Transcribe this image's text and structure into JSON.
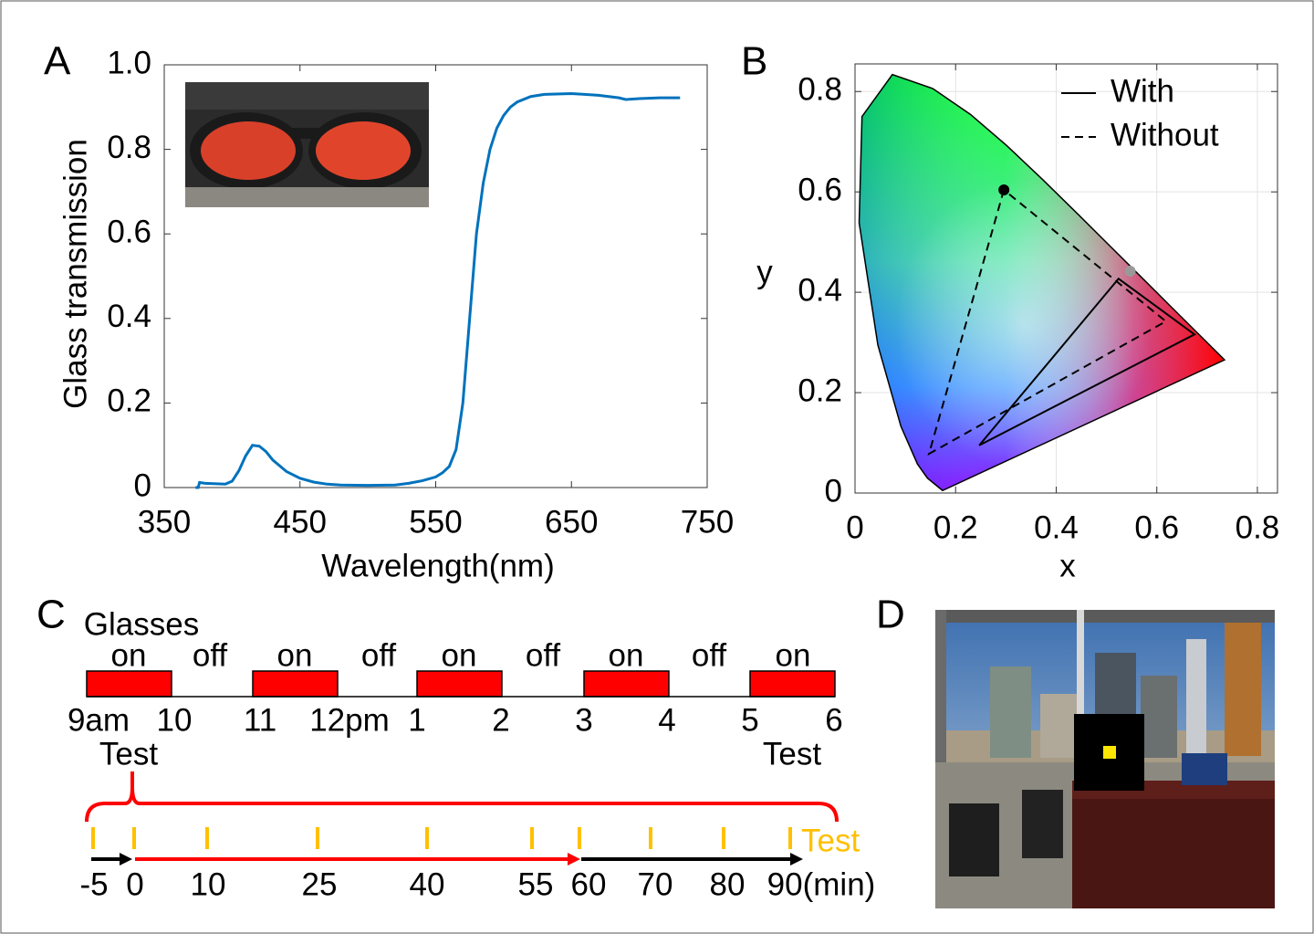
{
  "panels": {
    "a": "A",
    "b": "B",
    "c": "C",
    "d": "D"
  },
  "chart_data": [
    {
      "type": "line",
      "xlabel": "Wavelength(nm)",
      "ylabel": "Glass transmission",
      "xlim": [
        350,
        750
      ],
      "ylim": [
        0,
        1
      ],
      "xticks": [
        350,
        450,
        550,
        650,
        750
      ],
      "yticks": [
        0,
        0.2,
        0.4,
        0.6,
        0.8,
        {
          "value": 1,
          "label": "1.0"
        }
      ],
      "x": [
        373,
        375,
        376,
        380,
        395,
        400,
        405,
        410,
        415,
        420,
        425,
        430,
        440,
        450,
        460,
        470,
        480,
        500,
        520,
        530,
        540,
        550,
        555,
        560,
        565,
        570,
        575,
        580,
        585,
        590,
        595,
        600,
        605,
        610,
        620,
        630,
        650,
        670,
        685,
        690,
        700,
        715,
        730
      ],
      "values": [
        0,
        0,
        0.012,
        0.01,
        0.008,
        0.015,
        0.04,
        0.075,
        0.1,
        0.098,
        0.085,
        0.065,
        0.038,
        0.022,
        0.013,
        0.008,
        0.006,
        0.005,
        0.006,
        0.01,
        0.016,
        0.025,
        0.035,
        0.05,
        0.09,
        0.2,
        0.4,
        0.6,
        0.72,
        0.8,
        0.85,
        0.88,
        0.9,
        0.912,
        0.925,
        0.93,
        0.932,
        0.928,
        0.922,
        0.918,
        0.92,
        0.922,
        0.922
      ],
      "color": "#0072bd"
    },
    {
      "type": "line",
      "xlabel": "x",
      "ylabel": "y",
      "xlim": [
        0,
        0.84
      ],
      "ylim": [
        0,
        0.855
      ],
      "xticks": [
        0,
        0.2,
        0.4,
        0.6,
        0.8
      ],
      "yticks": [
        0,
        0.2,
        0.4,
        0.6,
        0.8
      ],
      "grid": true,
      "legend": "upper right",
      "locus": {
        "x": [
          0.1741,
          0.144,
          0.1241,
          0.0913,
          0.0454,
          0.0082,
          0.0139,
          0.0743,
          0.1547,
          0.2296,
          0.3016,
          0.3731,
          0.4441,
          0.5125,
          0.5752,
          0.627,
          0.6915,
          0.7347
        ],
        "y": [
          0.005,
          0.0297,
          0.0578,
          0.1327,
          0.295,
          0.5384,
          0.7502,
          0.8338,
          0.8059,
          0.7543,
          0.6923,
          0.6245,
          0.5547,
          0.4866,
          0.4242,
          0.3725,
          0.3083,
          0.2653
        ]
      },
      "series": [
        {
          "name": "With",
          "color": "#000000",
          "style": "solid",
          "x": [
            0.524,
            0.247,
            0.675
          ],
          "values": [
            0.427,
            0.095,
            0.316
          ]
        },
        {
          "name": "Without",
          "color": "#000000",
          "style": "dashed",
          "x": [
            0.296,
            0.147,
            0.618
          ],
          "values": [
            0.604,
            0.078,
            0.342
          ]
        }
      ],
      "points": {
        "x": [
          0.296,
          0.547
        ],
        "y": [
          0.604,
          0.442
        ],
        "colors": [
          "#000000",
          "#999999"
        ]
      }
    }
  ],
  "timeline": {
    "glasses": "Glasses",
    "states": [
      "on",
      "off",
      "on",
      "off",
      "on",
      "off",
      "on",
      "off",
      "on"
    ],
    "times": [
      "9am",
      "10",
      "11",
      "12pm",
      "1",
      "2",
      "3",
      "4",
      "5",
      "6"
    ],
    "tests": [
      "Test",
      "Test"
    ],
    "minutes": [
      "-5",
      "0",
      "10",
      "25",
      "40",
      "55",
      "60",
      "70",
      "80",
      "90(min)"
    ],
    "test_marker": "Test"
  }
}
